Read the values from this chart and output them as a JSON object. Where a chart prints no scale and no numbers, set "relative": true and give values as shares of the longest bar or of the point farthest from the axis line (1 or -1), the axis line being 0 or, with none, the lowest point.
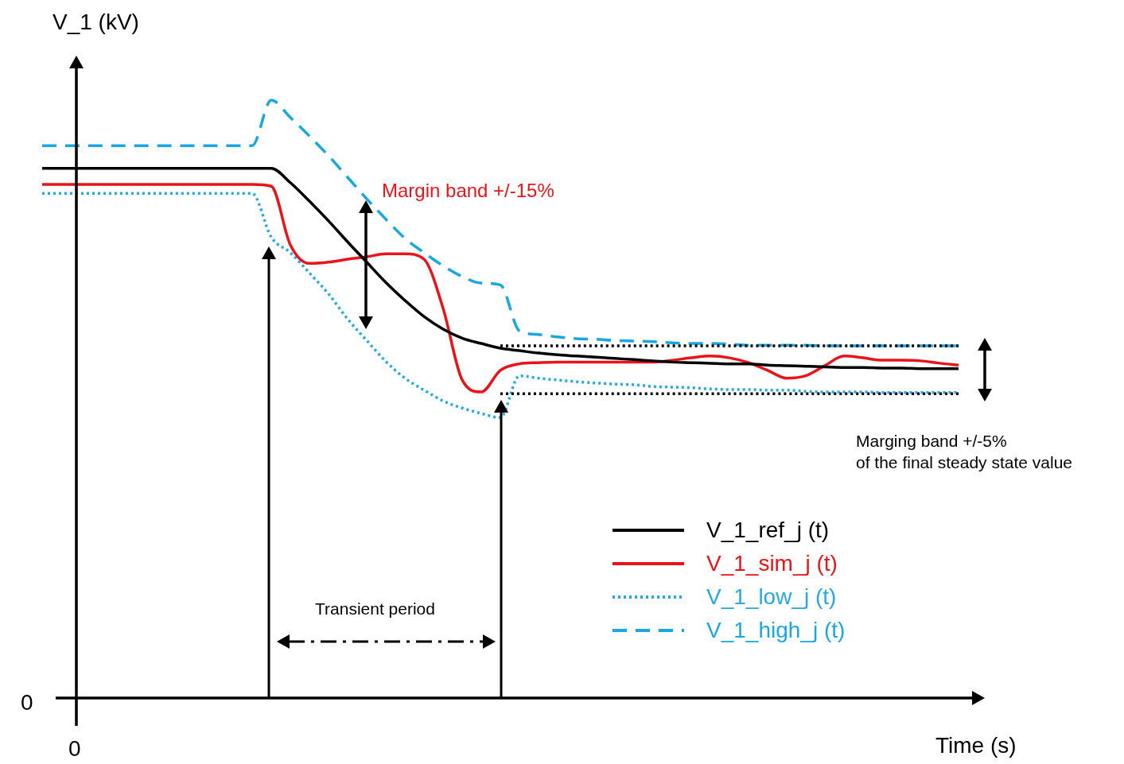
{
  "chart_data": {
    "type": "line",
    "relative": true,
    "xlabel": "Time (s)",
    "ylabel": "V_1 (kV)",
    "legend": "bottom right",
    "annotations": [
      "Margin band +/-15%",
      "Transient period",
      "Marging band +/-5%\nof the final steady state value",
      "0",
      "0"
    ],
    "categories": [
      null,
      null,
      null,
      null,
      null,
      null,
      null,
      null,
      null,
      null,
      null,
      null,
      null,
      null,
      null,
      null,
      null,
      null,
      null,
      null,
      null,
      null,
      null,
      null,
      null,
      null,
      null,
      null,
      null,
      null,
      null,
      null,
      null,
      null,
      null,
      null,
      null,
      null,
      null,
      null,
      null,
      null,
      null,
      null,
      null,
      null,
      null,
      null,
      null
    ],
    "series": [
      {
        "name": "V_1_ref_j (t)",
        "color": "#000000",
        "line_style": "solid",
        "values": [
          0.886,
          0.886,
          0.886,
          0.886,
          0.886,
          0.886,
          0.886,
          0.886,
          0.886,
          0.886,
          0.886,
          0.886,
          0.886,
          0.862,
          0.831,
          0.798,
          0.763,
          0.729,
          0.695,
          0.665,
          0.638,
          0.617,
          0.602,
          0.593,
          0.585,
          0.581,
          0.577,
          0.574,
          0.572,
          0.57,
          0.568,
          0.566,
          0.564,
          0.562,
          0.561,
          0.56,
          0.559,
          0.559,
          0.557,
          0.556,
          0.555,
          0.554,
          0.553,
          0.553,
          0.552,
          0.552,
          0.551,
          0.551,
          0.551
        ]
      },
      {
        "name": "V_1_sim_j (t)",
        "color": "#e8141a",
        "line_style": "solid",
        "values": [
          0.859,
          0.859,
          0.859,
          0.859,
          0.859,
          0.859,
          0.859,
          0.859,
          0.859,
          0.859,
          0.859,
          0.859,
          0.856,
          0.758,
          0.727,
          0.729,
          0.734,
          0.738,
          0.743,
          0.743,
          0.734,
          0.652,
          0.532,
          0.512,
          0.548,
          0.559,
          0.561,
          0.562,
          0.562,
          0.562,
          0.562,
          0.562,
          0.562,
          0.565,
          0.569,
          0.572,
          0.569,
          0.561,
          0.548,
          0.535,
          0.539,
          0.556,
          0.572,
          0.569,
          0.565,
          0.565,
          0.564,
          0.56,
          0.557
        ]
      },
      {
        "name": "V_1_low_j (t)",
        "color": "#27a8e0",
        "line_style": "dotted",
        "values": [
          0.844,
          0.844,
          0.844,
          0.844,
          0.844,
          0.844,
          0.844,
          0.844,
          0.844,
          0.844,
          0.844,
          0.844,
          0.771,
          0.745,
          0.711,
          0.676,
          0.634,
          0.598,
          0.563,
          0.535,
          0.515,
          0.497,
          0.485,
          0.476,
          0.469,
          0.539,
          0.535,
          0.532,
          0.529,
          0.527,
          0.525,
          0.524,
          0.521,
          0.52,
          0.519,
          0.517,
          0.516,
          0.516,
          0.515,
          0.515,
          0.513,
          0.512,
          0.512,
          0.512,
          0.511,
          0.511,
          0.511,
          0.511,
          0.511
        ]
      },
      {
        "name": "V_1_high_j (t)",
        "color": "#1aa7e0",
        "line_style": "dashed",
        "values": [
          0.924,
          0.924,
          0.924,
          0.924,
          0.924,
          0.924,
          0.924,
          0.924,
          0.924,
          0.924,
          0.924,
          0.924,
          1,
          0.971,
          0.94,
          0.907,
          0.871,
          0.835,
          0.801,
          0.769,
          0.745,
          0.723,
          0.705,
          0.694,
          0.691,
          0.614,
          0.608,
          0.604,
          0.601,
          0.6,
          0.598,
          0.597,
          0.596,
          0.594,
          0.593,
          0.593,
          0.592,
          0.59,
          0.59,
          0.59,
          0.59,
          0.589,
          0.589,
          0.589,
          0.589,
          0.589,
          0.589,
          0.589,
          0.589
        ]
      },
      {
        "color": "#000000",
        "line_style": "dotted",
        "values": [
          null,
          null,
          null,
          null,
          null,
          null,
          null,
          null,
          null,
          null,
          null,
          null,
          null,
          null,
          null,
          null,
          null,
          null,
          null,
          null,
          null,
          null,
          null,
          null,
          0.589,
          0.589,
          0.589,
          0.589,
          0.589,
          0.589,
          0.589,
          0.589,
          0.589,
          0.589,
          0.589,
          0.589,
          0.589,
          0.589,
          0.589,
          0.589,
          0.589,
          0.589,
          0.589,
          0.589,
          0.589,
          0.589,
          0.589,
          0.589,
          0.589
        ]
      },
      {
        "color": "#000000",
        "line_style": "dotted",
        "values": [
          null,
          null,
          null,
          null,
          null,
          null,
          null,
          null,
          null,
          null,
          null,
          null,
          null,
          null,
          null,
          null,
          null,
          null,
          null,
          null,
          null,
          null,
          null,
          null,
          0.509,
          0.509,
          0.509,
          0.509,
          0.509,
          0.509,
          0.509,
          0.509,
          0.509,
          0.509,
          0.509,
          0.509,
          0.509,
          0.509,
          0.509,
          0.509,
          0.509,
          0.509,
          0.509,
          0.509,
          0.509,
          0.509,
          0.509,
          0.509,
          0.509
        ]
      }
    ]
  }
}
